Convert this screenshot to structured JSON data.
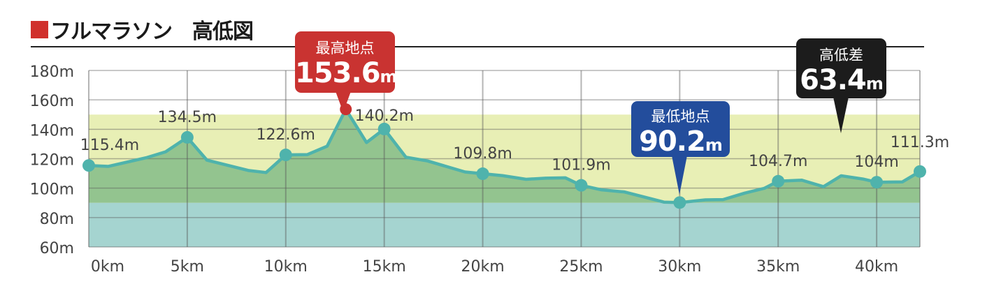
{
  "title": "フルマラソン　高低図",
  "colors": {
    "title_square": "#d0302c",
    "line": "#4fb3ac",
    "fill_above": "#93c48f",
    "band_mid": "#e8efb5",
    "band_low": "#a5d4d0",
    "high": "#c93331",
    "low": "#234d9c",
    "diff": "#1c1c1c"
  },
  "callouts": {
    "high": {
      "label": "最高地点",
      "value": "153.6",
      "unit": "m"
    },
    "low": {
      "label": "最低地点",
      "value": "90.2",
      "unit": "m"
    },
    "diff": {
      "label": "高低差",
      "value": "63.4",
      "unit": "m"
    }
  },
  "chart_data": {
    "type": "area",
    "title": "フルマラソン　高低図",
    "xlabel": "",
    "ylabel": "",
    "xlim": [
      0,
      42.195
    ],
    "ylim": [
      60,
      180
    ],
    "x_ticks": [
      "0km",
      "5km",
      "10km",
      "15km",
      "20km",
      "25km",
      "30km",
      "35km",
      "40km"
    ],
    "y_ticks": [
      "60m",
      "80m",
      "100m",
      "120m",
      "140m",
      "160m",
      "180m"
    ],
    "grid": true,
    "bands": [
      {
        "from": 90,
        "to": 150
      },
      {
        "from": 60,
        "to": 90
      }
    ],
    "points": [
      {
        "km": 0,
        "m": 115.4,
        "label": "115.4m"
      },
      {
        "km": 1.0,
        "m": 114.8
      },
      {
        "km": 2.9,
        "m": 120.6
      },
      {
        "km": 3.9,
        "m": 124.7
      },
      {
        "km": 5,
        "m": 134.5,
        "label": "134.5m"
      },
      {
        "km": 6.0,
        "m": 119
      },
      {
        "km": 8.1,
        "m": 112
      },
      {
        "km": 9.0,
        "m": 110.6
      },
      {
        "km": 10,
        "m": 122.6,
        "label": "122.6m"
      },
      {
        "km": 11.1,
        "m": 122.8
      },
      {
        "km": 12.1,
        "m": 128.5
      },
      {
        "km": 13.05,
        "m": 153.6,
        "peak": true
      },
      {
        "km": 14.1,
        "m": 131
      },
      {
        "km": 15,
        "m": 140.2,
        "label": "140.2m"
      },
      {
        "km": 16.1,
        "m": 121
      },
      {
        "km": 17.2,
        "m": 118.5
      },
      {
        "km": 19.1,
        "m": 111
      },
      {
        "km": 20,
        "m": 109.8,
        "label": "109.8m"
      },
      {
        "km": 21.0,
        "m": 108.5
      },
      {
        "km": 22.2,
        "m": 106
      },
      {
        "km": 23.2,
        "m": 106.8
      },
      {
        "km": 24.2,
        "m": 107
      },
      {
        "km": 25,
        "m": 101.9,
        "label": "101.9m"
      },
      {
        "km": 26,
        "m": 98.9
      },
      {
        "km": 27.2,
        "m": 97.4
      },
      {
        "km": 29.2,
        "m": 90.5
      },
      {
        "km": 30,
        "m": 90.2,
        "label": ""
      },
      {
        "km": 31.3,
        "m": 92
      },
      {
        "km": 32.2,
        "m": 92.2
      },
      {
        "km": 33.3,
        "m": 96.6
      },
      {
        "km": 34.3,
        "m": 99.9
      },
      {
        "km": 35,
        "m": 104.7,
        "label": "104.7m"
      },
      {
        "km": 36.2,
        "m": 105.4
      },
      {
        "km": 37.3,
        "m": 101
      },
      {
        "km": 38.2,
        "m": 108.4
      },
      {
        "km": 39.3,
        "m": 106.2
      },
      {
        "km": 40,
        "m": 104,
        "label": "104m"
      },
      {
        "km": 41.3,
        "m": 104.2
      },
      {
        "km": 42.195,
        "m": 111.3,
        "label": "111.3m"
      }
    ]
  }
}
